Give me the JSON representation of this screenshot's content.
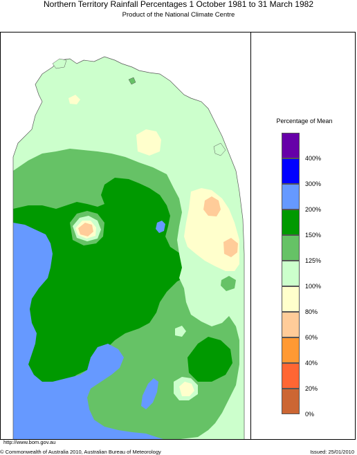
{
  "header": {
    "title": "Northern Territory Rainfall Percentages 1 October 1981 to 31 March 1982",
    "subtitle": "Product of the National Climate Centre"
  },
  "legend": {
    "title": "Percentage of Mean",
    "items": [
      {
        "color": "#6600a8",
        "label": ""
      },
      {
        "color": "#0000ff",
        "label": "400%"
      },
      {
        "color": "#6699ff",
        "label": "300%"
      },
      {
        "color": "#009900",
        "label": "200%"
      },
      {
        "color": "#66c266",
        "label": "150%"
      },
      {
        "color": "#ccffcc",
        "label": "125%"
      },
      {
        "color": "#ffffcc",
        "label": "100%"
      },
      {
        "color": "#ffcc99",
        "label": "80%"
      },
      {
        "color": "#ff9933",
        "label": "60%"
      },
      {
        "color": "#ff6633",
        "label": "40%"
      },
      {
        "color": "#cc6633",
        "label": "20%"
      },
      {
        "color": "",
        "label": "0%"
      }
    ]
  },
  "colors": {
    "lt_green": "#ccffcc",
    "mid_green": "#66c266",
    "dk_green": "#009900",
    "blue": "#6699ff",
    "cream": "#ffffcc",
    "peach": "#ffcc99"
  },
  "footer": {
    "url": "http://www.bom.gov.au",
    "copyright": "© Commonwealth of Australia 2010, Australian Bureau of Meteorology",
    "issued": "Issued: 25/01/2010"
  }
}
